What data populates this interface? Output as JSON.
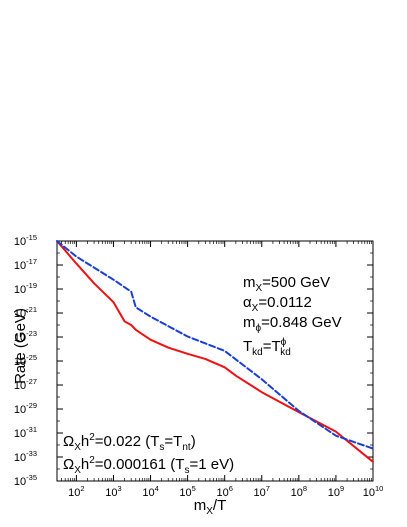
{
  "chart_data": {
    "type": "line",
    "xlabel": "m_X/T",
    "ylabel": "Rate (GeV)",
    "xscale": "log",
    "yscale": "log",
    "xlim": [
      30,
      10000000000.0
    ],
    "ylim": [
      1e-35,
      1e-15
    ],
    "grid": false,
    "x_ticks": [
      {
        "base": "10",
        "exp": "2",
        "value": 100
      },
      {
        "base": "10",
        "exp": "3",
        "value": 1000
      },
      {
        "base": "10",
        "exp": "4",
        "value": 10000
      },
      {
        "base": "10",
        "exp": "5",
        "value": 100000
      },
      {
        "base": "10",
        "exp": "6",
        "value": 1000000
      },
      {
        "base": "10",
        "exp": "7",
        "value": 10000000
      },
      {
        "base": "10",
        "exp": "8",
        "value": 100000000
      },
      {
        "base": "10",
        "exp": "9",
        "value": 1000000000
      },
      {
        "base": "10",
        "exp": "10",
        "value": 10000000000
      }
    ],
    "y_ticks": [
      {
        "base": "10",
        "exp": "-15",
        "value": 1e-15
      },
      {
        "base": "10",
        "exp": "-17",
        "value": 1e-17
      },
      {
        "base": "10",
        "exp": "-19",
        "value": 1e-19
      },
      {
        "base": "10",
        "exp": "-21",
        "value": 1e-21
      },
      {
        "base": "10",
        "exp": "-23",
        "value": 1e-23
      },
      {
        "base": "10",
        "exp": "-25",
        "value": 1e-25
      },
      {
        "base": "10",
        "exp": "-27",
        "value": 1e-27
      },
      {
        "base": "10",
        "exp": "-29",
        "value": 1e-29
      },
      {
        "base": "10",
        "exp": "-31",
        "value": 1e-31
      },
      {
        "base": "10",
        "exp": "-33",
        "value": 1e-33
      },
      {
        "base": "10",
        "exp": "-35",
        "value": 1e-35
      }
    ],
    "series": [
      {
        "style": "solid",
        "color": "#ee1111",
        "x": [
          30,
          100,
          300,
          1000,
          2000,
          3000,
          4000,
          10000,
          30000,
          100000,
          300000,
          1000000,
          2000000,
          5000000,
          10000000,
          100000000,
          1000000000,
          10000000000
        ],
        "y": [
          1e-15,
          1.3e-17,
          3e-19,
          8e-21,
          2e-22,
          1e-22,
          4e-23,
          6e-24,
          1.3e-24,
          4e-25,
          1.5e-25,
          3e-26,
          6e-27,
          1e-27,
          2.5e-28,
          5.5e-30,
          1.3e-31,
          4e-34
        ]
      },
      {
        "style": "dashed",
        "color": "#1a3fd6",
        "x": [
          30,
          100,
          1000,
          3000,
          4000,
          10000,
          100000,
          1000000,
          10000000,
          100000000,
          1000000000,
          10000000000
        ],
        "y": [
          1e-15,
          5e-17,
          6e-19,
          6e-20,
          3e-21,
          5e-22,
          1.1e-23,
          7e-25,
          3e-27,
          7e-30,
          6e-32,
          5e-33
        ]
      }
    ],
    "annotations": {
      "mx": {
        "main": "m",
        "sub": "X",
        "rest": "=500 GeV"
      },
      "alpha": {
        "main": "α",
        "sub": "X",
        "rest": "=0.0112"
      },
      "mphi": {
        "main": "m",
        "sub": "ϕ",
        "rest": "=0.848 GeV"
      },
      "tkd": {
        "main": "T",
        "sub": "kd",
        "rest": "=T",
        "sup2": "ϕ",
        "sub2": "kd"
      },
      "omega1": {
        "main": "Ω",
        "sub": "X",
        "mid": "h",
        "sup": "2",
        "rest": "=0.022 (T",
        "sub2": "s",
        "rest2": "=T",
        "sub3": "nt",
        "rest3": ")"
      },
      "omega2": {
        "main": "Ω",
        "sub": "X",
        "mid": "h",
        "sup": "2",
        "rest": "=0.000161 (T",
        "sub2": "s",
        "rest2": "=1 eV)"
      }
    }
  }
}
